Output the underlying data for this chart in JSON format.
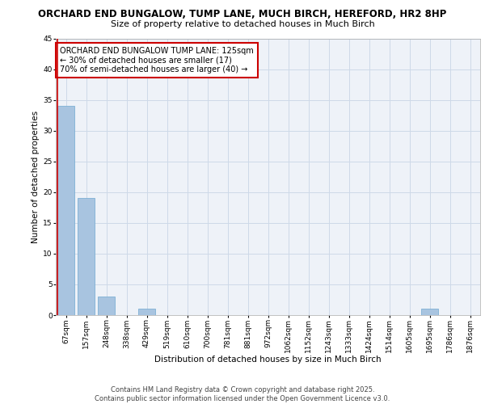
{
  "title_line1": "ORCHARD END BUNGALOW, TUMP LANE, MUCH BIRCH, HEREFORD, HR2 8HP",
  "title_line2": "Size of property relative to detached houses in Much Birch",
  "xlabel": "Distribution of detached houses by size in Much Birch",
  "ylabel": "Number of detached properties",
  "categories": [
    "67sqm",
    "157sqm",
    "248sqm",
    "338sqm",
    "429sqm",
    "519sqm",
    "610sqm",
    "700sqm",
    "781sqm",
    "881sqm",
    "972sqm",
    "1062sqm",
    "1152sqm",
    "1243sqm",
    "1333sqm",
    "1424sqm",
    "1514sqm",
    "1605sqm",
    "1695sqm",
    "1786sqm",
    "1876sqm"
  ],
  "values": [
    34,
    19,
    3,
    0,
    1,
    0,
    0,
    0,
    0,
    0,
    0,
    0,
    0,
    0,
    0,
    0,
    0,
    0,
    1,
    0,
    0
  ],
  "bar_color": "#a8c4e0",
  "bar_edge_color": "#6fa8d0",
  "grid_color": "#cdd9e8",
  "background_color": "#eef2f8",
  "annotation_text": "ORCHARD END BUNGALOW TUMP LANE: 125sqm\n← 30% of detached houses are smaller (17)\n70% of semi-detached houses are larger (40) →",
  "vline_color": "#cc0000",
  "annotation_box_color": "#cc0000",
  "ylim": [
    0,
    45
  ],
  "yticks": [
    0,
    5,
    10,
    15,
    20,
    25,
    30,
    35,
    40,
    45
  ],
  "footer_line1": "Contains HM Land Registry data © Crown copyright and database right 2025.",
  "footer_line2": "Contains public sector information licensed under the Open Government Licence v3.0.",
  "title_fontsize": 8.5,
  "subtitle_fontsize": 8,
  "axis_label_fontsize": 7.5,
  "tick_fontsize": 6.5,
  "annotation_fontsize": 7,
  "footer_fontsize": 6
}
